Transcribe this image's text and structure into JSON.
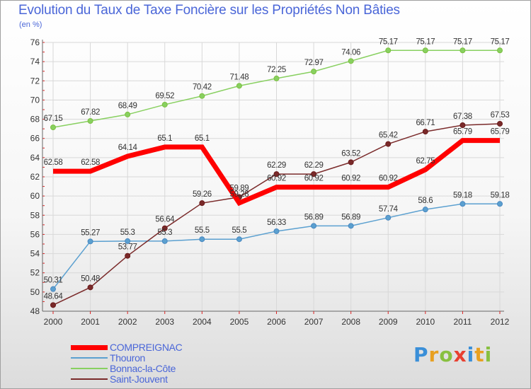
{
  "title": "Evolution du Taux de Taxe Foncière sur les Propriétés Non Bâties",
  "unit": "(en %)",
  "colors": {
    "COMPREIGNAC": "#ff0000",
    "Thouron": "#5ba0d0",
    "Bonnac-la-Côte": "#88d060",
    "Saint-Jouvent": "#7a2a2a"
  },
  "brand": {
    "letters": [
      "P",
      "r",
      "o",
      "x",
      "i",
      "t",
      "i"
    ],
    "colors": [
      "#3a8fd8",
      "#e8a020",
      "#88c040",
      "#e84030",
      "#3a8fd8",
      "#e8a020",
      "#88c040"
    ]
  },
  "chart_data": {
    "type": "line",
    "title": "Evolution du Taux de Taxe Foncière sur les Propriétés Non Bâties",
    "ylabel": "(en %)",
    "xlabel": "",
    "x": [
      "2000",
      "2001",
      "2002",
      "2003",
      "2004",
      "2005",
      "2006",
      "2007",
      "2008",
      "2009",
      "2010",
      "2011",
      "2012"
    ],
    "ylim": [
      48,
      76
    ],
    "yticks": [
      48,
      50,
      52,
      54,
      56,
      58,
      60,
      62,
      64,
      66,
      68,
      70,
      72,
      74,
      76
    ],
    "grid": true,
    "legend_position": "bottom-left",
    "series": [
      {
        "name": "COMPREIGNAC",
        "values": [
          62.58,
          62.58,
          64.14,
          65.1,
          65.1,
          59.28,
          60.92,
          60.92,
          60.92,
          60.92,
          62.75,
          65.79,
          65.79
        ],
        "labels": [
          "62.58",
          "62.58",
          "64.14",
          "65.1",
          "65.1",
          "59.28",
          "60.92",
          "60.92",
          "60.92",
          "60.92",
          "62.75",
          "65.79",
          "65.79"
        ]
      },
      {
        "name": "Thouron",
        "values": [
          50.31,
          55.27,
          55.3,
          55.3,
          55.5,
          55.5,
          56.33,
          56.89,
          56.89,
          57.74,
          58.6,
          59.18,
          59.18
        ],
        "labels": [
          "50.31",
          "55.27",
          "55.3",
          "55.3",
          "55.5",
          "55.5",
          "56.33",
          "56.89",
          "56.89",
          "57.74",
          "58.6",
          "59.18",
          "59.18"
        ]
      },
      {
        "name": "Bonnac-la-Côte",
        "values": [
          67.15,
          67.82,
          68.49,
          69.52,
          70.42,
          71.48,
          72.25,
          72.97,
          74.06,
          75.17,
          75.17,
          75.17,
          75.17
        ],
        "labels": [
          "67.15",
          "67.82",
          "68.49",
          "69.52",
          "70.42",
          "71.48",
          "72.25",
          "72.97",
          "74.06",
          "75.17",
          "75.17",
          "75.17",
          "75.17"
        ]
      },
      {
        "name": "Saint-Jouvent",
        "values": [
          48.64,
          50.48,
          53.77,
          56.64,
          59.26,
          59.89,
          62.29,
          62.29,
          63.52,
          65.42,
          66.71,
          67.38,
          67.53
        ],
        "labels": [
          "48.64",
          "50.48",
          "53.77",
          "56.64",
          "59.26",
          "59.89",
          "62.29",
          "62.29",
          "63.52",
          "65.42",
          "66.71",
          "67.38",
          "67.53"
        ]
      }
    ]
  }
}
